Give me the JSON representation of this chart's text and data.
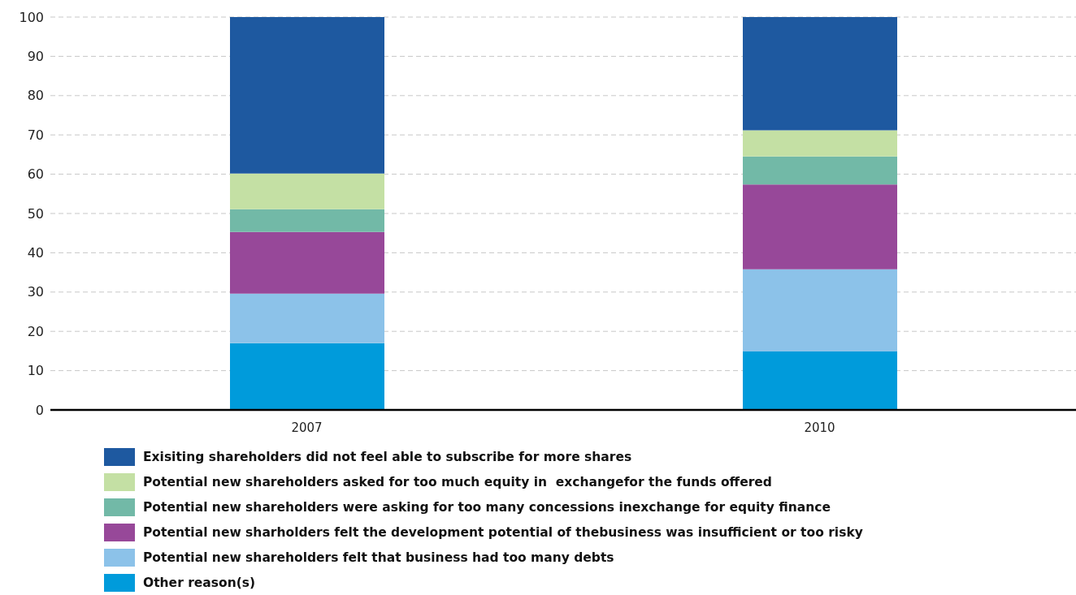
{
  "chart_data": {
    "type": "bar",
    "stacked": true,
    "categories": [
      "2007",
      "2010"
    ],
    "series": [
      {
        "name": "Other reason(s)",
        "color": "#009bdb",
        "values": [
          17.0,
          14.9
        ]
      },
      {
        "name": "Potential new shareholders felt that business had too many debts",
        "color": "#8cc2e9",
        "values": [
          12.6,
          20.9
        ]
      },
      {
        "name": "Potential new sharholders felt the development potential of thebusiness was insufficient or too risky",
        "color": "#974899",
        "values": [
          15.7,
          21.6
        ]
      },
      {
        "name": "Potential new shareholders were asking for too many concessions inexchange for equity finance",
        "color": "#72b9a7",
        "values": [
          5.8,
          7.1
        ]
      },
      {
        "name": "Potential new shareholders asked for too much equity in  exchangefor the funds offered",
        "color": "#c4e0a4",
        "values": [
          9.1,
          6.7
        ]
      },
      {
        "name": "Exisiting shareholders did not feel able to subscribe for more shares",
        "color": "#1e59a0",
        "values": [
          39.8,
          28.8
        ]
      }
    ],
    "ylim": [
      0,
      100
    ],
    "yticks": [
      0,
      10,
      20,
      30,
      40,
      50,
      60,
      70,
      80,
      90,
      100
    ],
    "grid": "y",
    "legend": "bottom"
  }
}
